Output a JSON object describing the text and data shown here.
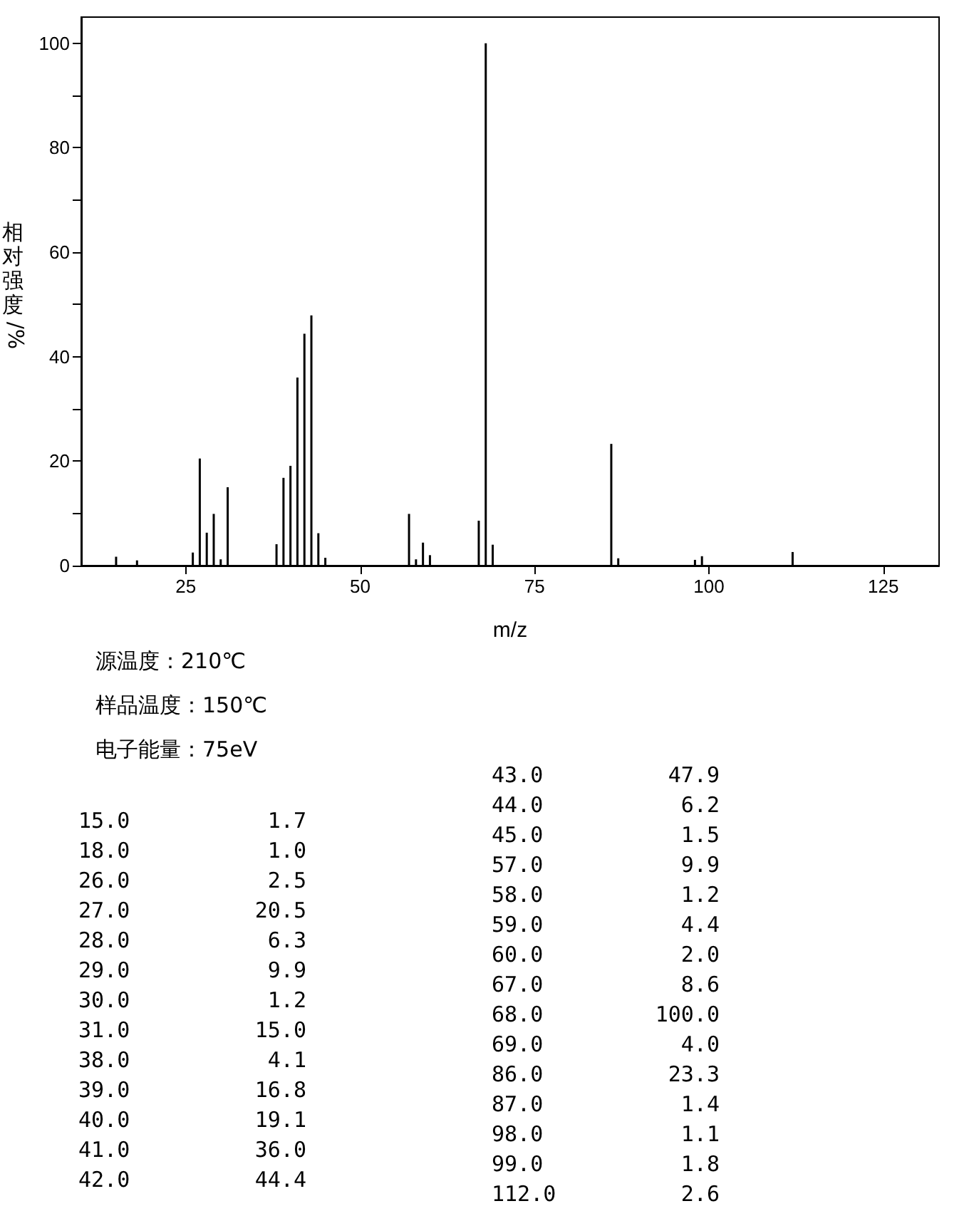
{
  "chart_data": {
    "type": "bar",
    "xlabel": "m/z",
    "ylabel": "相对强度/%",
    "x": [
      15,
      18,
      26,
      27,
      28,
      29,
      30,
      31,
      38,
      39,
      40,
      41,
      42,
      43,
      44,
      45,
      57,
      58,
      59,
      60,
      67,
      68,
      69,
      86,
      87,
      98,
      99,
      112
    ],
    "values": [
      1.7,
      1.0,
      2.5,
      20.5,
      6.3,
      9.9,
      1.2,
      15.0,
      4.1,
      16.8,
      19.1,
      36.0,
      44.4,
      47.9,
      6.2,
      1.5,
      9.9,
      1.2,
      4.4,
      2.0,
      8.6,
      100.0,
      4.0,
      23.3,
      1.4,
      1.1,
      1.8,
      2.6
    ],
    "color": "#000000",
    "xlim": [
      10,
      133
    ],
    "xticks": [
      25,
      50,
      75,
      100,
      125
    ],
    "ylim": [
      0,
      105
    ],
    "yticks": [
      0,
      {
        "value": 10,
        "label": null
      },
      20,
      {
        "value": 30,
        "label": null
      },
      40,
      {
        "value": 50,
        "label": null
      },
      60,
      {
        "value": 70,
        "label": null
      },
      80,
      {
        "value": 90,
        "label": null
      },
      100
    ],
    "grid": false,
    "annotations": [
      "源温度：210℃",
      "样品温度：150℃",
      "电子能量：75eV",
      "15.0",
      "1.7",
      "18.0",
      "1.0",
      "26.0",
      "2.5",
      "27.0",
      "20.5",
      "28.0",
      "6.3",
      "29.0",
      "9.9",
      "30.0",
      "1.2",
      "31.0",
      "15.0",
      "38.0",
      "4.1",
      "39.0",
      "16.8",
      "40.0",
      "19.1",
      "41.0",
      "36.0",
      "42.0",
      "44.4",
      "43.0",
      "47.9",
      "44.0",
      "6.2",
      "45.0",
      "1.5",
      "57.0",
      "9.9",
      "58.0",
      "1.2",
      "59.0",
      "4.4",
      "60.0",
      "2.0",
      "67.0",
      "8.6",
      "68.0",
      "100.0",
      "69.0",
      "4.0",
      "86.0",
      "23.3",
      "87.0",
      "1.4",
      "98.0",
      "1.1",
      "99.0",
      "1.8",
      "112.0",
      "2.6"
    ]
  }
}
